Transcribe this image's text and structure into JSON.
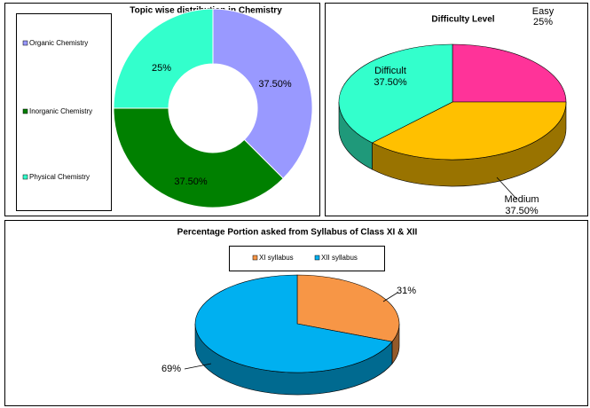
{
  "chart_data": [
    {
      "type": "donut",
      "title": "Topic wise distribution in Chemistry",
      "categories": [
        "Organic Chemistry",
        "Inorganic Chemistry",
        "Physical Chemistry"
      ],
      "values": [
        37.5,
        37.5,
        25
      ],
      "value_labels": [
        "37.50%",
        "37.50%",
        "25%"
      ],
      "colors": [
        "#9999ff",
        "#008000",
        "#33ffcc"
      ],
      "legend": "left"
    },
    {
      "type": "pie3d",
      "title": "Difficulty Level",
      "categories": [
        "Easy",
        "Medium",
        "Difficult"
      ],
      "values": [
        25,
        37.5,
        37.5
      ],
      "value_labels": [
        "25%",
        "37.50%",
        "37.50%"
      ],
      "colors": [
        "#ff3399",
        "#ffc000",
        "#33ffcc"
      ]
    },
    {
      "type": "pie3d",
      "title": "Percentage Portion asked from Syllabus of Class XI & XII",
      "categories": [
        "XI syllabus",
        "XII syllabus"
      ],
      "values": [
        31,
        69
      ],
      "value_labels": [
        "31%",
        "69%"
      ],
      "colors": [
        "#f79646",
        "#00b0f0"
      ],
      "legend": "top"
    }
  ]
}
